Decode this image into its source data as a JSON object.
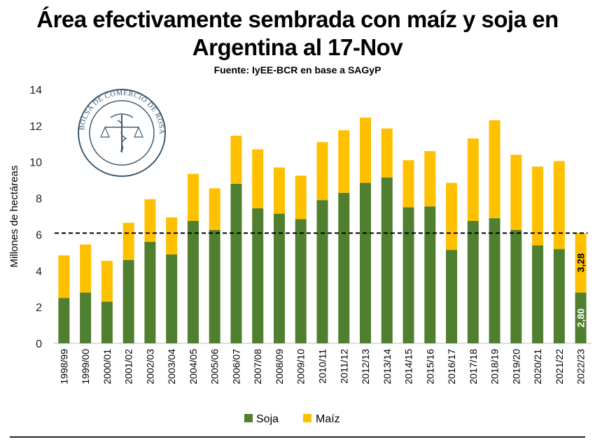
{
  "title_line1": "Área efectivamente sembrada con maíz y soja en",
  "title_line2": "Argentina al 17-Nov",
  "subtitle": "Fuente: IyEE-BCR en base a SAGyP",
  "logo_text": "BOLSA DE COMERCIO DE ROSARIO",
  "colors": {
    "soja": "#4f7f2f",
    "maiz": "#ffc000",
    "reference_line": "#000000"
  },
  "chart_data": {
    "type": "bar",
    "stacked": true,
    "title": "Área efectivamente sembrada con maíz y soja en Argentina al 17-Nov",
    "xlabel": "",
    "ylabel": "Millones de hectáreas",
    "ylim": [
      0,
      14
    ],
    "yticks": [
      0,
      2,
      4,
      6,
      8,
      10,
      12,
      14
    ],
    "grid": false,
    "legend_position": "bottom",
    "categories": [
      "1998/99",
      "1999/00",
      "2000/01",
      "2001/02",
      "2002/03",
      "2003/04",
      "2004/05",
      "2005/06",
      "2006/07",
      "2007/08",
      "2008/09",
      "2009/10",
      "2010/11",
      "2011/12",
      "2012/13",
      "2013/14",
      "2014/15",
      "2015/16",
      "2016/17",
      "2017/18",
      "2018/19",
      "2019/20",
      "2020/21",
      "2021/22",
      "2022/23"
    ],
    "series": [
      {
        "name": "Soja",
        "values": [
          2.5,
          2.8,
          2.3,
          4.6,
          5.6,
          4.9,
          6.75,
          6.25,
          8.8,
          7.45,
          7.15,
          6.85,
          7.9,
          8.3,
          8.85,
          9.15,
          7.5,
          7.55,
          5.15,
          6.75,
          6.9,
          6.25,
          5.4,
          5.2,
          2.8
        ]
      },
      {
        "name": "Maíz",
        "values": [
          2.35,
          2.65,
          2.25,
          2.05,
          2.35,
          2.05,
          2.6,
          2.3,
          2.65,
          3.25,
          2.55,
          2.4,
          3.2,
          3.45,
          3.6,
          2.7,
          2.6,
          3.05,
          3.7,
          4.55,
          5.4,
          4.15,
          4.35,
          4.85,
          3.28
        ]
      }
    ],
    "reference_line": {
      "y": 6.08,
      "style": "dashed"
    },
    "data_labels": [
      {
        "category": "2022/23",
        "series": "Soja",
        "text": "2,80"
      },
      {
        "category": "2022/23",
        "series": "Maíz",
        "text": "3,28"
      }
    ]
  }
}
